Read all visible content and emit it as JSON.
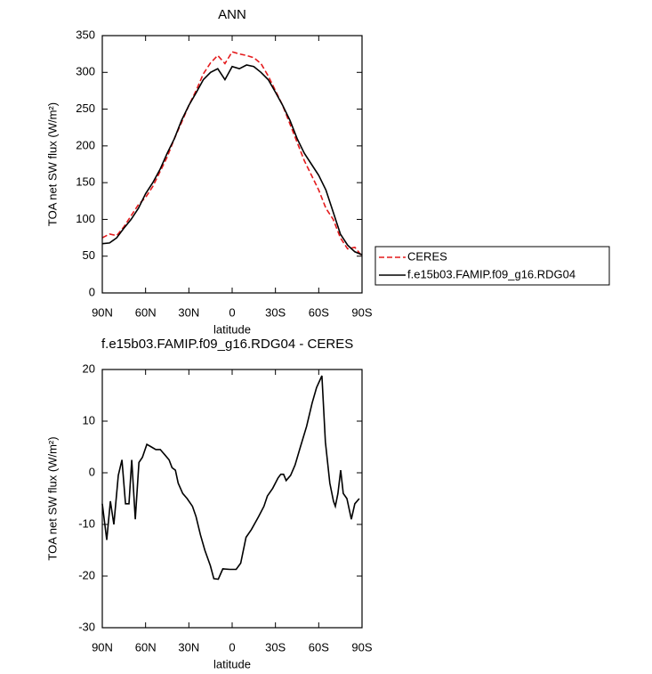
{
  "chart_data": [
    {
      "type": "line",
      "title": "ANN",
      "xlabel": "latitude",
      "ylabel": "TOA net SW flux (W/m²)",
      "x": [
        90,
        85,
        80,
        75,
        70,
        65,
        60,
        55,
        50,
        45,
        40,
        35,
        30,
        25,
        20,
        15,
        10,
        5,
        0,
        -5,
        -10,
        -15,
        -20,
        -25,
        -30,
        -35,
        -40,
        -45,
        -50,
        -55,
        -60,
        -65,
        -70,
        -75,
        -80,
        -85,
        -90
      ],
      "xlim": [
        90,
        -90
      ],
      "xticks": [
        {
          "value": 90,
          "label": "90N"
        },
        {
          "value": 60,
          "label": "60N"
        },
        {
          "value": 30,
          "label": "30N"
        },
        0,
        {
          "value": -30,
          "label": "30S"
        },
        {
          "value": -60,
          "label": "60S"
        },
        {
          "value": -90,
          "label": "90S"
        }
      ],
      "ylim": [
        0,
        350
      ],
      "yticks": [
        0,
        50,
        100,
        150,
        200,
        250,
        300,
        350
      ],
      "legend": "right",
      "series": [
        {
          "name": "CERES",
          "color": "#e41a1c",
          "dashed": true,
          "values": [
            75,
            80,
            78,
            90,
            105,
            120,
            130,
            145,
            165,
            185,
            210,
            232,
            255,
            275,
            298,
            313,
            323,
            312,
            328,
            325,
            323,
            320,
            312,
            295,
            275,
            255,
            230,
            205,
            180,
            160,
            140,
            115,
            100,
            75,
            60,
            62,
            50
          ]
        },
        {
          "name": "f.e15b03.FAMIP.f09_g16.RDG04",
          "color": "#000000",
          "dashed": false,
          "values": [
            67,
            68,
            75,
            88,
            100,
            115,
            135,
            150,
            168,
            190,
            210,
            235,
            255,
            272,
            290,
            300,
            305,
            290,
            308,
            305,
            310,
            308,
            300,
            290,
            273,
            255,
            235,
            210,
            190,
            175,
            160,
            140,
            110,
            80,
            65,
            56,
            52
          ]
        }
      ]
    },
    {
      "type": "line",
      "title": "f.e15b03.FAMIP.f09_g16.RDG04 - CERES",
      "xlabel": "latitude",
      "ylabel": "TOA net SW flux (W/m²)",
      "x": [
        90,
        86.9,
        84.4,
        82,
        78.9,
        76.4,
        73.9,
        71.5,
        69.6,
        67.1,
        64.6,
        62.2,
        59.1,
        56,
        52.9,
        49.8,
        46.7,
        43.7,
        41.7,
        39.3,
        37.4,
        34.3,
        31.2,
        27.5,
        25,
        22,
        18.9,
        15.1,
        12.7,
        9.6,
        6.5,
        1.6,
        -2.8,
        -5.9,
        -9.6,
        -13.3,
        -18.3,
        -22,
        -24.4,
        -28.1,
        -31.8,
        -33.7,
        -35.6,
        -37.4,
        -40.5,
        -43.6,
        -47.3,
        -51.6,
        -55.4,
        -58.5,
        -62.2,
        -64.6,
        -67.7,
        -70.2,
        -71.5,
        -73.3,
        -75.2,
        -77,
        -79.5,
        -82.6,
        -85,
        -88.1
      ],
      "xlim": [
        90,
        -90
      ],
      "xticks": [
        {
          "value": 90,
          "label": "90N"
        },
        {
          "value": 60,
          "label": "60N"
        },
        {
          "value": 30,
          "label": "30N"
        },
        0,
        {
          "value": -30,
          "label": "30S"
        },
        {
          "value": -60,
          "label": "60S"
        },
        {
          "value": -90,
          "label": "90S"
        }
      ],
      "ylim": [
        -30,
        20
      ],
      "yticks": [
        -30,
        -20,
        -10,
        0,
        10,
        20
      ],
      "series": [
        {
          "color": "#000000",
          "dashed": false,
          "values": [
            -6,
            -13,
            -5.5,
            -10,
            -0.5,
            2.5,
            -6,
            -6,
            2.5,
            -9,
            2,
            3,
            5.5,
            5,
            4.5,
            4.5,
            3.5,
            2.5,
            1,
            0.5,
            -2,
            -4,
            -5,
            -6.5,
            -8.5,
            -12,
            -15,
            -18,
            -20.5,
            -20.6,
            -18.6,
            -18.7,
            -18.7,
            -17.5,
            -12.5,
            -11,
            -8.5,
            -6.5,
            -4.5,
            -3,
            -1,
            -0.3,
            -0.3,
            -1.5,
            -0.5,
            1.5,
            5,
            9,
            13.5,
            16.5,
            18.8,
            6,
            -2,
            -5.5,
            -6.5,
            -4,
            0.5,
            -4,
            -5,
            -9,
            -6,
            -5
          ]
        }
      ]
    }
  ]
}
